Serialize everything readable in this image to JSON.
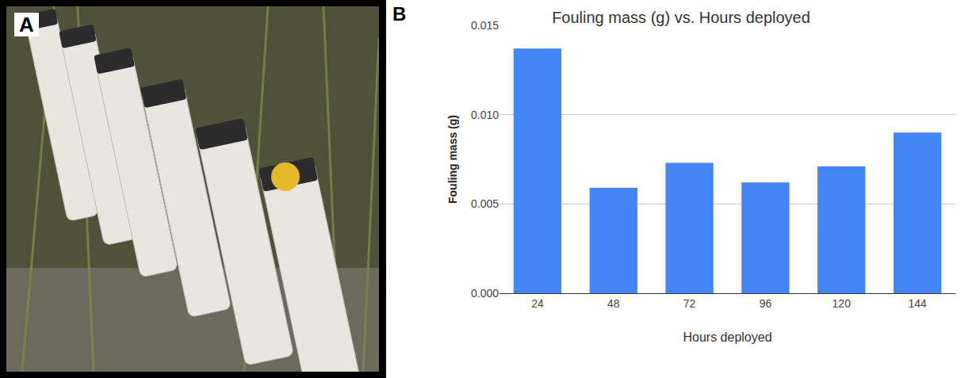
{
  "panel_labels": [
    "A",
    "B"
  ],
  "chart_data": {
    "type": "bar",
    "title": "Fouling mass (g) vs. Hours deployed",
    "x_label": "Hours deployed",
    "y_label": "Fouling mass (g)",
    "categories": [
      "24",
      "48",
      "72",
      "96",
      "120",
      "144"
    ],
    "values": [
      0.0137,
      0.0059,
      0.0073,
      0.0062,
      0.0071,
      0.009
    ],
    "color": "#4285f4",
    "ylim": [
      0,
      0.015
    ],
    "yticks": [
      {
        "value": 0,
        "label": "0.000"
      },
      {
        "value": 0.005,
        "label": "0.005"
      },
      {
        "value": 0.01,
        "label": "0.010"
      },
      {
        "value": 0.015,
        "label": "0.015"
      }
    ],
    "grid": true
  }
}
